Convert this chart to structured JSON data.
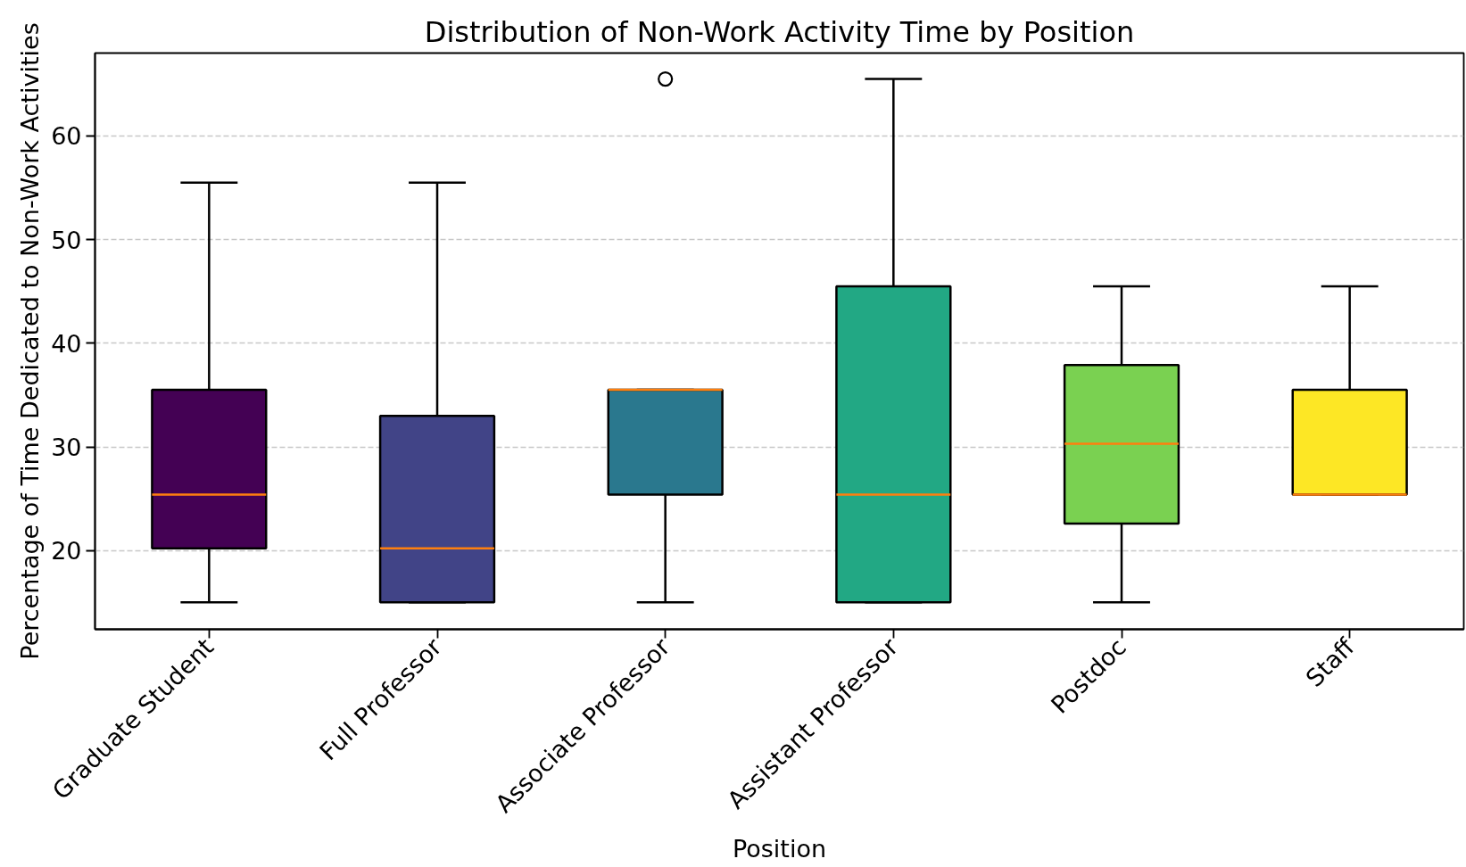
{
  "chart_data": {
    "type": "box",
    "title": "Distribution of Non-Work Activity Time by Position",
    "xlabel": "Position",
    "ylabel": "Percentage of Time Dedicated to Non-Work Activities",
    "categories": [
      "Graduate Student",
      "Full Professor",
      "Associate Professor",
      "Assistant Professor",
      "Postdoc",
      "Staff"
    ],
    "colors": [
      "#440154",
      "#414487",
      "#2a788e",
      "#22a884",
      "#7ad151",
      "#fde725"
    ],
    "boxes": [
      {
        "low": 15,
        "q1": 20.2,
        "median": 25.4,
        "q3": 35.5,
        "high": 55.5
      },
      {
        "low": 15,
        "q1": 15,
        "median": 20.2,
        "q3": 33,
        "high": 55.5
      },
      {
        "low": 15,
        "q1": 25.4,
        "median": 35.5,
        "q3": 35.5,
        "high": 35.5,
        "outliers": [
          65.5
        ]
      },
      {
        "low": 15,
        "q1": 15,
        "median": 25.4,
        "q3": 45.5,
        "high": 65.5
      },
      {
        "low": 15,
        "q1": 22.6,
        "median": 30.3,
        "q3": 37.9,
        "high": 45.5
      },
      {
        "low": 25.4,
        "q1": 25.4,
        "median": 25.4,
        "q3": 35.5,
        "high": 45.5
      }
    ],
    "ylim": [
      12.4,
      68.0
    ],
    "yticks": [
      20,
      30,
      40,
      50,
      60
    ],
    "grid": "y"
  }
}
